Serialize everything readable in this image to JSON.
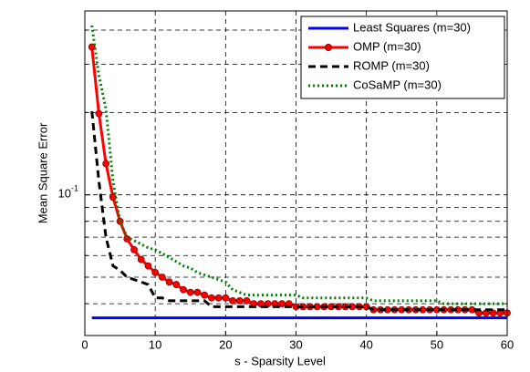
{
  "chart_data": {
    "type": "line",
    "xlabel": "s - Sparsity Level",
    "ylabel": "Mean Square Error",
    "xlim": [
      0,
      60
    ],
    "xticks": [
      0,
      10,
      20,
      30,
      40,
      50,
      60
    ],
    "ylim": [
      0.0306,
      0.47
    ],
    "ylog": true,
    "yticks": [
      {
        "value": 0.1,
        "label": "10",
        "exponent": "-1"
      }
    ],
    "minor_yticks": [
      0.04,
      0.05,
      0.06,
      0.07,
      0.08,
      0.09,
      0.2,
      0.3,
      0.4
    ],
    "grid": true,
    "legend": "upper right",
    "x": [
      1,
      2,
      3,
      4,
      5,
      6,
      7,
      8,
      9,
      10,
      11,
      12,
      13,
      14,
      15,
      16,
      17,
      18,
      19,
      20,
      21,
      22,
      23,
      24,
      25,
      26,
      27,
      28,
      29,
      30,
      31,
      32,
      33,
      34,
      35,
      36,
      37,
      38,
      39,
      40,
      41,
      42,
      43,
      44,
      45,
      46,
      47,
      48,
      49,
      50,
      51,
      52,
      53,
      54,
      55,
      56,
      57,
      58,
      59,
      60
    ],
    "series": [
      {
        "name": "Least Squares (m=30)",
        "color": "#0000ff",
        "line_style": "solid",
        "marker": "none",
        "values": [
          0.0355,
          0.0355,
          0.0355,
          0.0355,
          0.0355,
          0.0355,
          0.0355,
          0.0355,
          0.0355,
          0.0355,
          0.0355,
          0.0355,
          0.0355,
          0.0355,
          0.0355,
          0.0355,
          0.0355,
          0.0355,
          0.0355,
          0.0355,
          0.0355,
          0.0355,
          0.0355,
          0.0355,
          0.0355,
          0.0355,
          0.0355,
          0.0355,
          0.0355,
          0.0355,
          0.0355,
          0.0355,
          0.0355,
          0.0355,
          0.0355,
          0.0355,
          0.0355,
          0.0355,
          0.0355,
          0.0355,
          0.0355,
          0.0355,
          0.0355,
          0.0355,
          0.0355,
          0.0355,
          0.0355,
          0.0355,
          0.0355,
          0.0355,
          0.0355,
          0.0355,
          0.0355,
          0.0355,
          0.0355,
          0.0355,
          0.0355,
          0.0355,
          0.0355,
          0.0355
        ]
      },
      {
        "name": "OMP (m=30)",
        "color": "#ff0000",
        "line_style": "solid",
        "marker": "circle",
        "values": [
          0.347,
          0.198,
          0.13,
          0.098,
          0.08,
          0.069,
          0.063,
          0.058,
          0.055,
          0.052,
          0.05,
          0.048,
          0.047,
          0.045,
          0.044,
          0.044,
          0.043,
          0.042,
          0.042,
          0.042,
          0.041,
          0.041,
          0.041,
          0.04,
          0.04,
          0.04,
          0.04,
          0.04,
          0.04,
          0.039,
          0.039,
          0.039,
          0.039,
          0.039,
          0.039,
          0.039,
          0.039,
          0.039,
          0.039,
          0.039,
          0.038,
          0.038,
          0.038,
          0.038,
          0.038,
          0.038,
          0.038,
          0.038,
          0.038,
          0.038,
          0.038,
          0.038,
          0.038,
          0.038,
          0.038,
          0.037,
          0.037,
          0.037,
          0.037,
          0.037
        ]
      },
      {
        "name": "ROMP (m=30)",
        "color": "#000000",
        "line_style": "dashed",
        "marker": "none",
        "values": [
          0.202,
          0.112,
          0.07,
          0.055,
          0.053,
          0.05,
          0.049,
          0.048,
          0.047,
          0.042,
          0.042,
          0.041,
          0.041,
          0.041,
          0.041,
          0.041,
          0.041,
          0.039,
          0.039,
          0.039,
          0.039,
          0.039,
          0.039,
          0.039,
          0.039,
          0.039,
          0.039,
          0.039,
          0.039,
          0.039,
          0.039,
          0.039,
          0.039,
          0.039,
          0.039,
          0.039,
          0.039,
          0.039,
          0.039,
          0.039,
          0.038,
          0.038,
          0.038,
          0.038,
          0.038,
          0.038,
          0.038,
          0.038,
          0.038,
          0.038,
          0.038,
          0.038,
          0.038,
          0.038,
          0.038,
          0.038,
          0.038,
          0.038,
          0.038,
          0.038
        ]
      },
      {
        "name": "CoSaMP (m=30)",
        "color": "#008000",
        "line_style": "dotted",
        "marker": "none",
        "values": [
          0.416,
          0.273,
          0.206,
          0.112,
          0.08,
          0.07,
          0.068,
          0.066,
          0.064,
          0.063,
          0.061,
          0.059,
          0.057,
          0.055,
          0.054,
          0.052,
          0.051,
          0.05,
          0.049,
          0.048,
          0.045,
          0.044,
          0.043,
          0.043,
          0.043,
          0.043,
          0.043,
          0.043,
          0.043,
          0.043,
          0.042,
          0.042,
          0.042,
          0.042,
          0.042,
          0.042,
          0.042,
          0.042,
          0.042,
          0.042,
          0.041,
          0.041,
          0.041,
          0.041,
          0.041,
          0.041,
          0.041,
          0.041,
          0.041,
          0.041,
          0.04,
          0.04,
          0.04,
          0.04,
          0.04,
          0.04,
          0.04,
          0.04,
          0.04,
          0.04
        ]
      }
    ]
  }
}
